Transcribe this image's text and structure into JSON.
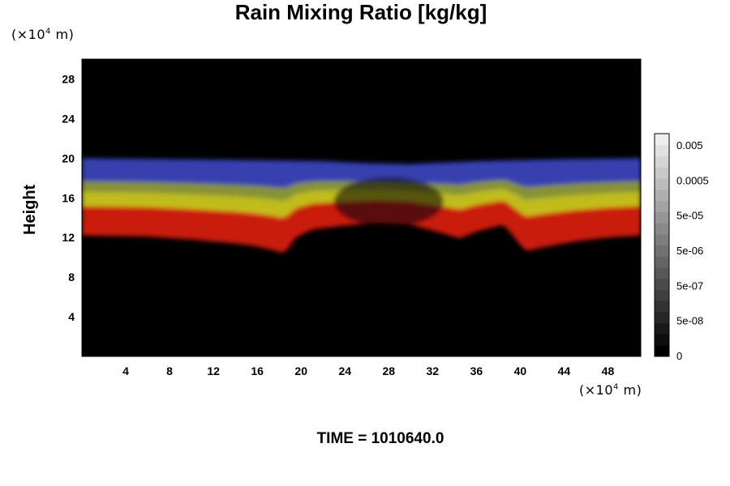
{
  "chart_data": {
    "type": "heatmap",
    "title": "Rain Mixing Ratio [kg/kg]",
    "ylabel": "Height",
    "xunit": {
      "prefix": "(×10",
      "exp": "4",
      "suffix": " m)"
    },
    "yunit": {
      "prefix": "(×10",
      "exp": "4",
      "suffix": " m)"
    },
    "xlim": [
      0,
      51
    ],
    "ylim": [
      0,
      30
    ],
    "xticks": [
      4,
      8,
      12,
      16,
      20,
      24,
      28,
      32,
      36,
      40,
      44,
      48
    ],
    "yticks": [
      4,
      8,
      12,
      16,
      20,
      24,
      28
    ],
    "background_color": "#000000",
    "colorbar": {
      "labels": [
        "0.005",
        "0.0005",
        "5e-05",
        "5e-06",
        "5e-07",
        "5e-08",
        "0"
      ],
      "values": [
        0.005,
        0.0005,
        5e-05,
        5e-06,
        5e-07,
        5e-08,
        0
      ],
      "low_color": "#000000",
      "high_color": "#eeeeee"
    },
    "bands": [
      {
        "name": "top",
        "color": "#3a44b8"
      },
      {
        "name": "upper",
        "color": "#8e9a3a"
      },
      {
        "name": "middle",
        "color": "#c9c61e"
      },
      {
        "name": "lower",
        "color": "#d41a12"
      }
    ],
    "bottom_profile": [
      [
        0,
        12.2
      ],
      [
        6,
        12.1
      ],
      [
        10,
        11.8
      ],
      [
        14,
        11.4
      ],
      [
        16,
        11.1
      ],
      [
        17.5,
        10.7
      ],
      [
        18.5,
        10.4
      ],
      [
        19.5,
        12.0
      ],
      [
        21,
        12.8
      ],
      [
        24,
        13.2
      ],
      [
        27,
        13.5
      ],
      [
        30,
        13.3
      ],
      [
        33,
        12.4
      ],
      [
        34.5,
        11.9
      ],
      [
        36,
        12.6
      ],
      [
        38.5,
        13.3
      ],
      [
        40.5,
        10.6
      ],
      [
        42,
        11.0
      ],
      [
        45,
        11.6
      ],
      [
        48,
        12.0
      ],
      [
        51,
        12.2
      ]
    ],
    "top_profile": [
      [
        0,
        20.0
      ],
      [
        8,
        19.9
      ],
      [
        16,
        19.8
      ],
      [
        22,
        19.7
      ],
      [
        26,
        19.5
      ],
      [
        30,
        19.4
      ],
      [
        36,
        19.7
      ],
      [
        44,
        19.9
      ],
      [
        51,
        20.0
      ]
    ]
  },
  "footer": {
    "time_label": "TIME = 1010640.0"
  }
}
